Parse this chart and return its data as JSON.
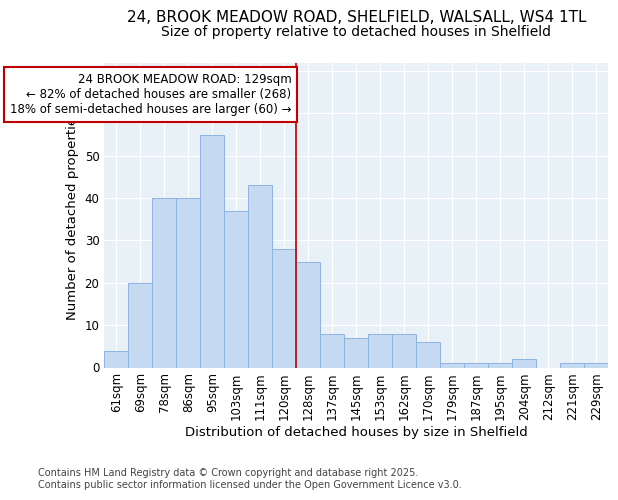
{
  "title_line1": "24, BROOK MEADOW ROAD, SHELFIELD, WALSALL, WS4 1TL",
  "title_line2": "Size of property relative to detached houses in Shelfield",
  "xlabel": "Distribution of detached houses by size in Shelfield",
  "ylabel": "Number of detached properties",
  "footnote": "Contains HM Land Registry data © Crown copyright and database right 2025.\nContains public sector information licensed under the Open Government Licence v3.0.",
  "categories": [
    "61sqm",
    "69sqm",
    "78sqm",
    "86sqm",
    "95sqm",
    "103sqm",
    "111sqm",
    "120sqm",
    "128sqm",
    "137sqm",
    "145sqm",
    "153sqm",
    "162sqm",
    "170sqm",
    "179sqm",
    "187sqm",
    "195sqm",
    "204sqm",
    "212sqm",
    "221sqm",
    "229sqm"
  ],
  "values": [
    4,
    20,
    40,
    40,
    55,
    37,
    43,
    28,
    25,
    8,
    7,
    8,
    8,
    6,
    1,
    1,
    1,
    2,
    0,
    1,
    1
  ],
  "bar_color": "#c5d9f1",
  "bar_edge_color": "#8eb4e3",
  "vline_index": 8,
  "vline_color": "#c00000",
  "annotation_text": "24 BROOK MEADOW ROAD: 129sqm\n← 82% of detached houses are smaller (268)\n18% of semi-detached houses are larger (60) →",
  "annotation_box_color": "#c00000",
  "ylim": [
    0,
    72
  ],
  "yticks": [
    0,
    10,
    20,
    30,
    40,
    50,
    60,
    70
  ],
  "background_color": "#ffffff",
  "plot_bg_color": "#e8f0f8",
  "grid_color": "#ffffff",
  "title_fontsize": 11,
  "subtitle_fontsize": 10,
  "axis_label_fontsize": 9.5,
  "tick_fontsize": 8.5,
  "annotation_fontsize": 8.5,
  "footnote_fontsize": 7
}
